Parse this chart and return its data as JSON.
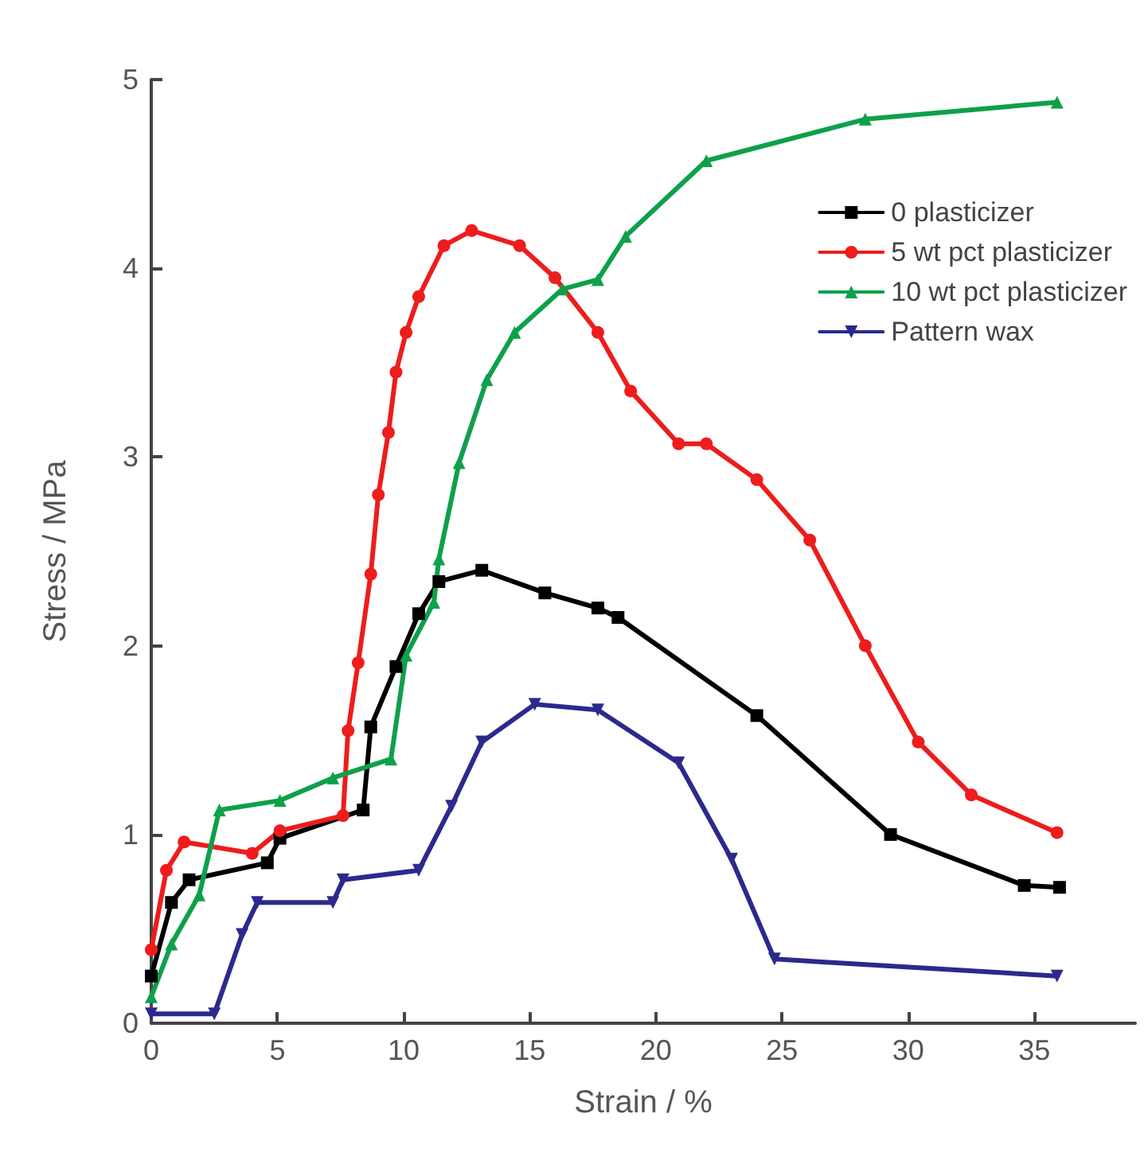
{
  "chart_data": {
    "type": "line",
    "xlabel": "Strain / %",
    "ylabel": "Stress / MPa",
    "xlim": [
      0,
      39
    ],
    "xticks": [
      0,
      5,
      10,
      15,
      20,
      25,
      30,
      35
    ],
    "ylim": [
      0,
      5
    ],
    "yticks": [
      0,
      1,
      2,
      3,
      4,
      5
    ],
    "grid": false,
    "legend": "top right",
    "line_style": "solid",
    "series": [
      {
        "name": "0 plasticizer",
        "color": "#000000",
        "marker": "square",
        "x": [
          0,
          0.8,
          1.5,
          4.6,
          5.1,
          8.4,
          8.7,
          9.7,
          10.6,
          11.4,
          13.1,
          15.6,
          17.7,
          18.5,
          24,
          29.3,
          34.6,
          36
        ],
        "values": [
          0.25,
          0.64,
          0.76,
          0.85,
          0.98,
          1.13,
          1.57,
          1.89,
          2.17,
          2.34,
          2.4,
          2.28,
          2.2,
          2.15,
          1.63,
          1.0,
          0.73,
          0.72
        ]
      },
      {
        "name": "5 wt pct plasticizer",
        "color": "#ee1c1c",
        "marker": "circle",
        "x": [
          0,
          0.6,
          1.3,
          4,
          5.1,
          7.6,
          7.8,
          8.2,
          8.7,
          9,
          9.4,
          9.7,
          10.1,
          10.6,
          11.6,
          12.7,
          14.6,
          16,
          17.7,
          19,
          20.9,
          22,
          24,
          26.1,
          28.3,
          30.4,
          32.5,
          35.9
        ],
        "values": [
          0.39,
          0.81,
          0.96,
          0.9,
          1.02,
          1.1,
          1.55,
          1.91,
          2.38,
          2.8,
          3.13,
          3.45,
          3.66,
          3.85,
          4.12,
          4.2,
          4.12,
          3.95,
          3.66,
          3.35,
          3.07,
          3.07,
          2.88,
          2.56,
          2.0,
          1.49,
          1.21,
          1.01
        ]
      },
      {
        "name": "10 wt pct plasticizer",
        "color": "#0ea04a",
        "marker": "triangle",
        "x": [
          0,
          0.8,
          1.9,
          2.7,
          5.1,
          7.2,
          9.5,
          10.1,
          11.2,
          11.4,
          12.2,
          13.3,
          14.4,
          16.3,
          17.7,
          18.8,
          22,
          28.3,
          35.9
        ],
        "values": [
          0.14,
          0.42,
          0.68,
          1.13,
          1.18,
          1.3,
          1.4,
          1.95,
          2.23,
          2.46,
          2.97,
          3.41,
          3.66,
          3.89,
          3.94,
          4.17,
          4.57,
          4.79,
          4.88
        ]
      },
      {
        "name": "Pattern wax",
        "color": "#2b2a8c",
        "marker": "triangle-down",
        "x": [
          0,
          2.5,
          3.6,
          4.2,
          7.2,
          7.6,
          10.6,
          11.9,
          13.1,
          15.2,
          17.7,
          20.9,
          23,
          24.7,
          35.9
        ],
        "values": [
          0.05,
          0.05,
          0.47,
          0.64,
          0.64,
          0.76,
          0.81,
          1.15,
          1.49,
          1.69,
          1.66,
          1.38,
          0.87,
          0.34,
          0.25
        ]
      }
    ]
  }
}
